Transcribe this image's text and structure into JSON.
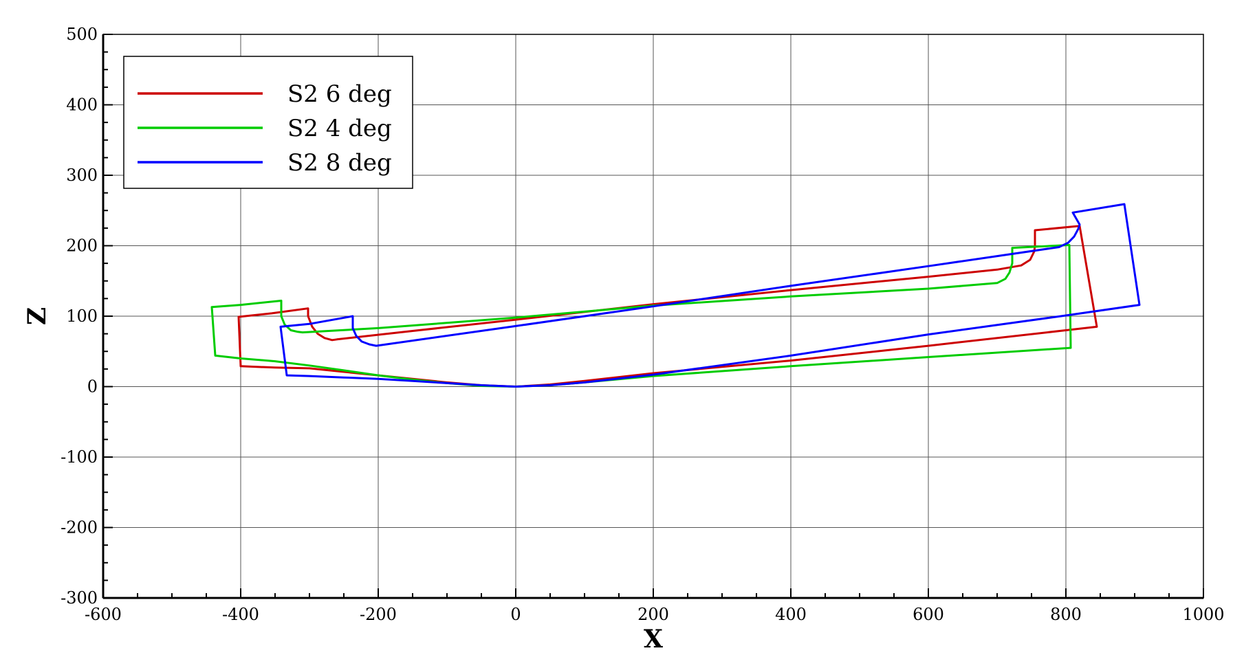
{
  "chart_data": {
    "type": "line",
    "title": "",
    "xlabel": "X",
    "ylabel": "Z",
    "xlim": [
      -600,
      1000
    ],
    "ylim": [
      -300,
      500
    ],
    "xticks": [
      -600,
      -400,
      -200,
      0,
      200,
      400,
      600,
      800,
      1000
    ],
    "yticks": [
      -300,
      -200,
      -100,
      0,
      100,
      200,
      300,
      400,
      500
    ],
    "grid": true,
    "legend_position": "top-left",
    "series": [
      {
        "name": "S2 6 deg",
        "color": "#cc0000",
        "points": [
          [
            0,
            0
          ],
          [
            -50,
            2
          ],
          [
            -100,
            6
          ],
          [
            -150,
            11
          ],
          [
            -200,
            16
          ],
          [
            -250,
            21
          ],
          [
            -300,
            26
          ],
          [
            -350,
            27
          ],
          [
            -400,
            29
          ],
          [
            -403,
            99
          ],
          [
            -355,
            104
          ],
          [
            -302,
            111
          ],
          [
            -302,
            100
          ],
          [
            -296,
            85
          ],
          [
            -288,
            75
          ],
          [
            -278,
            69
          ],
          [
            -267,
            66
          ],
          [
            -260,
            67
          ],
          [
            -150,
            79
          ],
          [
            0,
            95
          ],
          [
            200,
            117
          ],
          [
            400,
            137
          ],
          [
            600,
            156
          ],
          [
            700,
            166
          ],
          [
            735,
            172
          ],
          [
            748,
            180
          ],
          [
            754,
            192
          ],
          [
            755,
            200
          ],
          [
            755,
            222
          ],
          [
            820,
            228
          ],
          [
            845,
            85
          ],
          [
            800,
            80
          ],
          [
            600,
            58
          ],
          [
            400,
            37
          ],
          [
            200,
            19
          ],
          [
            100,
            8
          ],
          [
            50,
            3
          ],
          [
            0,
            0
          ]
        ]
      },
      {
        "name": "S2 4 deg",
        "color": "#00cc00",
        "points": [
          [
            0,
            0
          ],
          [
            -50,
            1
          ],
          [
            -100,
            5
          ],
          [
            -150,
            10
          ],
          [
            -200,
            16
          ],
          [
            -250,
            23
          ],
          [
            -300,
            30
          ],
          [
            -350,
            36
          ],
          [
            -400,
            40
          ],
          [
            -437,
            44
          ],
          [
            -442,
            113
          ],
          [
            -400,
            116
          ],
          [
            -341,
            122
          ],
          [
            -341,
            100
          ],
          [
            -336,
            88
          ],
          [
            -327,
            80
          ],
          [
            -318,
            78
          ],
          [
            -310,
            77
          ],
          [
            -200,
            83
          ],
          [
            0,
            98
          ],
          [
            200,
            115
          ],
          [
            400,
            128
          ],
          [
            600,
            139
          ],
          [
            700,
            147
          ],
          [
            712,
            153
          ],
          [
            718,
            162
          ],
          [
            722,
            175
          ],
          [
            722,
            197
          ],
          [
            805,
            201
          ],
          [
            807,
            55
          ],
          [
            600,
            42
          ],
          [
            400,
            29
          ],
          [
            200,
            15
          ],
          [
            100,
            6
          ],
          [
            50,
            2
          ],
          [
            0,
            0
          ]
        ]
      },
      {
        "name": "S2 8 deg",
        "color": "#0000ff",
        "points": [
          [
            0,
            0
          ],
          [
            -50,
            2
          ],
          [
            -100,
            5
          ],
          [
            -150,
            8
          ],
          [
            -200,
            11
          ],
          [
            -250,
            13
          ],
          [
            -300,
            15
          ],
          [
            -333,
            16
          ],
          [
            -342,
            85
          ],
          [
            -300,
            89
          ],
          [
            -237,
            100
          ],
          [
            -237,
            83
          ],
          [
            -232,
            72
          ],
          [
            -224,
            64
          ],
          [
            -213,
            60
          ],
          [
            -203,
            58
          ],
          [
            0,
            86
          ],
          [
            200,
            114
          ],
          [
            400,
            143
          ],
          [
            600,
            171
          ],
          [
            790,
            198
          ],
          [
            803,
            204
          ],
          [
            812,
            213
          ],
          [
            818,
            224
          ],
          [
            820,
            230
          ],
          [
            810,
            247
          ],
          [
            885,
            259
          ],
          [
            907,
            116
          ],
          [
            800,
            101
          ],
          [
            600,
            74
          ],
          [
            400,
            44
          ],
          [
            200,
            17
          ],
          [
            100,
            6
          ],
          [
            50,
            2
          ],
          [
            0,
            0
          ]
        ]
      }
    ]
  }
}
